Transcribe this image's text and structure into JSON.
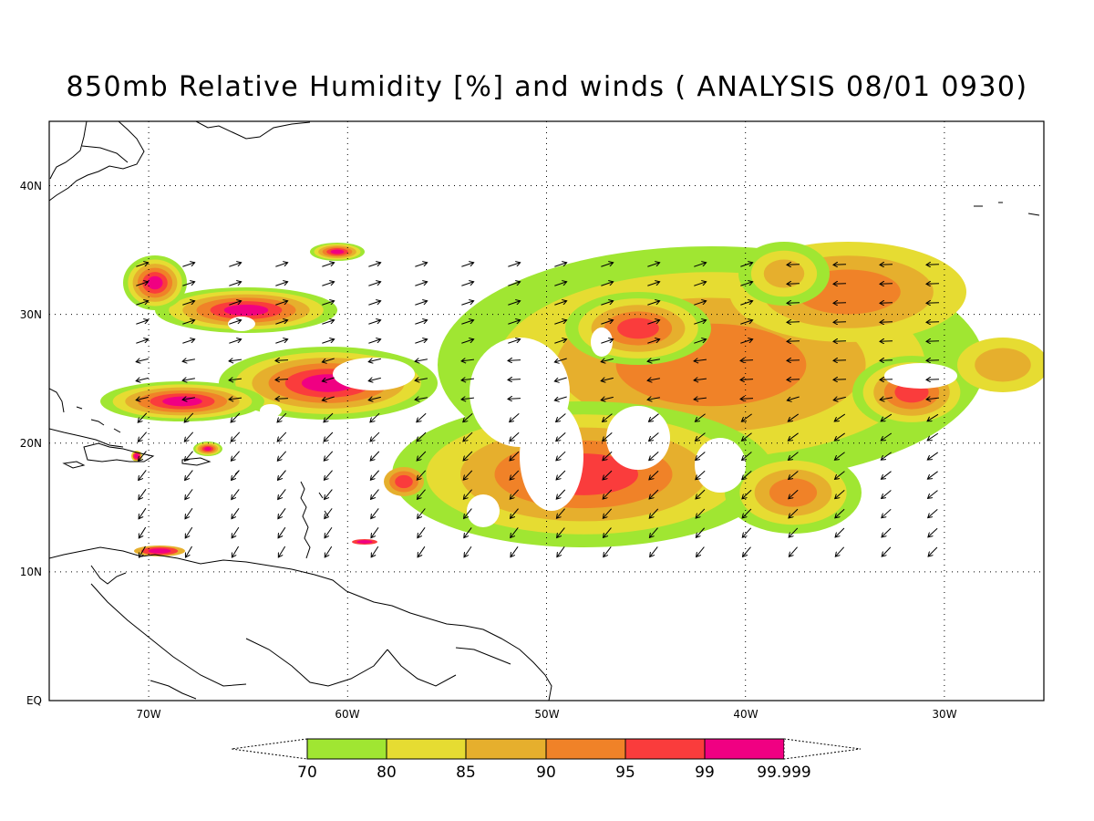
{
  "title": "850mb Relative Humidity [%] and winds ( ANALYSIS 08/01 0930)",
  "axes": {
    "lon_labels": [
      "70W",
      "60W",
      "50W",
      "40W",
      "30W"
    ],
    "lat_labels": [
      "EQ",
      "10N",
      "20N",
      "30N",
      "40N"
    ]
  },
  "colorbar": {
    "colors": [
      "#a0e632",
      "#e6dc32",
      "#e6af2d",
      "#f08228",
      "#fa3c3c",
      "#f00082"
    ],
    "labels": [
      "70",
      "80",
      "85",
      "90",
      "95",
      "99",
      "99.999"
    ]
  },
  "map": {
    "extent": {
      "lon": [
        -75,
        -25
      ],
      "lat": [
        0,
        45
      ]
    },
    "grid_lons": [
      -70,
      -60,
      -50,
      -40,
      -30
    ],
    "grid_lats": [
      10,
      20,
      30,
      40
    ],
    "shading": "relative humidity, 70 to 99.999 %",
    "vectors": "wind arrows"
  }
}
